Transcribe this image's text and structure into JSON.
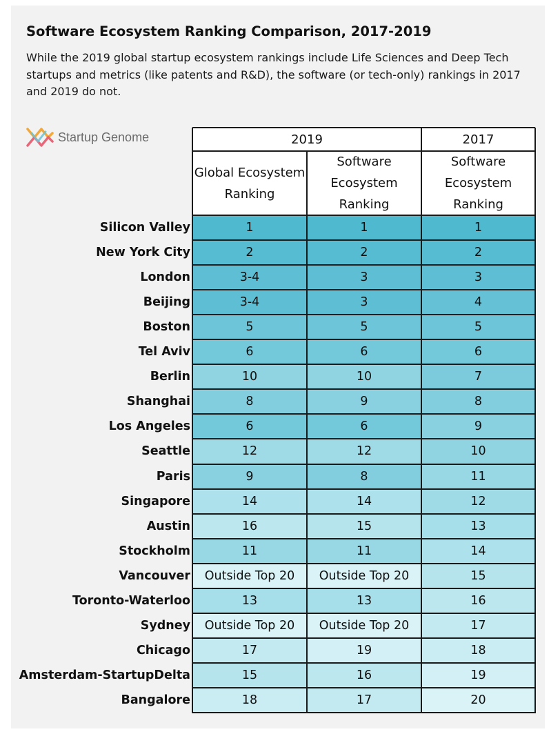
{
  "title": "Software Ecosystem Ranking Comparison, 2017-2019",
  "subtitle": "While the 2019 global startup ecosystem rankings include Life Sciences and Deep Tech startups and metrics (like patents and R&D), the software (or tech-only) rankings in 2017 and 2019 do not.",
  "logo": {
    "text": "Startup Genome",
    "icon": "startup-genome-logo"
  },
  "colors": {
    "background": "#f2f2f2",
    "rank_1": "#4fb9d0",
    "rank_20": "#d9f3f7",
    "outside": "#d9f3f7",
    "grid": "#1a1a1a"
  },
  "chart_data": {
    "type": "table",
    "column_groups": [
      {
        "label": "2019",
        "span": 2
      },
      {
        "label": "2017",
        "span": 1
      }
    ],
    "columns": [
      "Global Ecosystem Ranking",
      "Software Ecosystem Ranking",
      "Software Ecosystem Ranking"
    ],
    "rows": [
      {
        "city": "Silicon Valley",
        "values": [
          "1",
          "1",
          "1"
        ]
      },
      {
        "city": "New York City",
        "values": [
          "2",
          "2",
          "2"
        ]
      },
      {
        "city": "London",
        "values": [
          "3-4",
          "3",
          "3"
        ]
      },
      {
        "city": "Beijing",
        "values": [
          "3-4",
          "3",
          "4"
        ]
      },
      {
        "city": "Boston",
        "values": [
          "5",
          "5",
          "5"
        ]
      },
      {
        "city": "Tel Aviv",
        "values": [
          "6",
          "6",
          "6"
        ]
      },
      {
        "city": "Berlin",
        "values": [
          "10",
          "10",
          "7"
        ]
      },
      {
        "city": "Shanghai",
        "values": [
          "8",
          "9",
          "8"
        ]
      },
      {
        "city": "Los Angeles",
        "values": [
          "6",
          "6",
          "9"
        ]
      },
      {
        "city": "Seattle",
        "values": [
          "12",
          "12",
          "10"
        ]
      },
      {
        "city": "Paris",
        "values": [
          "9",
          "8",
          "11"
        ]
      },
      {
        "city": "Singapore",
        "values": [
          "14",
          "14",
          "12"
        ]
      },
      {
        "city": "Austin",
        "values": [
          "16",
          "15",
          "13"
        ]
      },
      {
        "city": "Stockholm",
        "values": [
          "11",
          "11",
          "14"
        ]
      },
      {
        "city": "Vancouver",
        "values": [
          "Outside Top 20",
          "Outside Top 20",
          "15"
        ]
      },
      {
        "city": "Toronto-Waterloo",
        "values": [
          "13",
          "13",
          "16"
        ]
      },
      {
        "city": "Sydney",
        "values": [
          "Outside Top 20",
          "Outside Top 20",
          "17"
        ]
      },
      {
        "city": "Chicago",
        "values": [
          "17",
          "19",
          "18"
        ]
      },
      {
        "city": "Amsterdam-StartupDelta",
        "values": [
          "15",
          "16",
          "19"
        ]
      },
      {
        "city": "Bangalore",
        "values": [
          "18",
          "17",
          "20"
        ]
      }
    ]
  }
}
